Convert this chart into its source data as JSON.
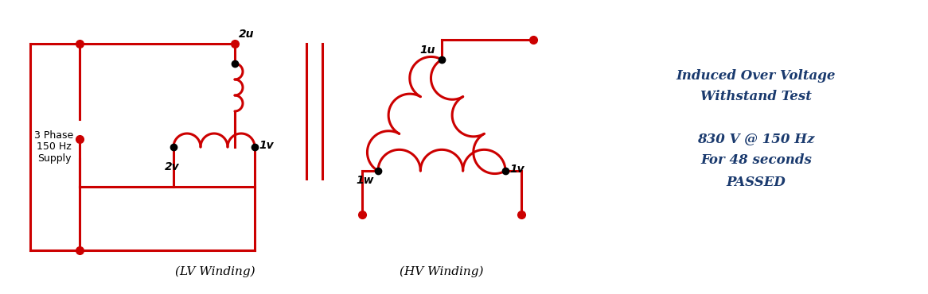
{
  "bg_color": "#ffffff",
  "red": "#cc0000",
  "dark_blue": "#1a3a6e",
  "text_3phase": "3 Phase\n150 Hz\nSupply",
  "lv_label": "(LV Winding)",
  "hv_label": "(HV Winding)",
  "info_line1": "Induced Over Voltage",
  "info_line2": "Withstand Test",
  "info_line3": "830 V @ 150 Hz",
  "info_line4": "For 48 seconds",
  "info_line5": "PASSED"
}
